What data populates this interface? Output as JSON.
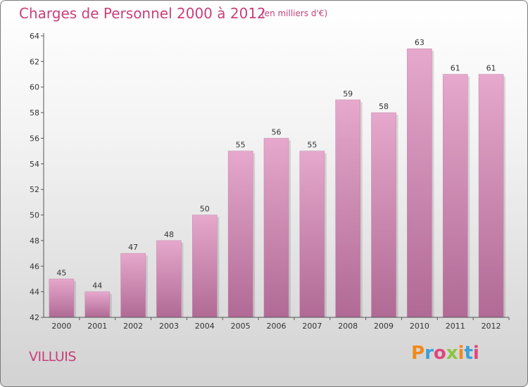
{
  "page": {
    "title": "Charges de Personnel 2000 à 2012",
    "subtitle": "(en milliers d'€)",
    "commune": "VILLUIS",
    "logo": {
      "text": "Proxiti",
      "colors": [
        "#f08a1c",
        "#3aa0d8",
        "#e0467a",
        "#8bc53f",
        "#f08a1c",
        "#3aa0d8",
        "#e0467a"
      ]
    }
  },
  "colors": {
    "bar_top": "#e6a8cc",
    "bar_bottom": "#b06a95",
    "title": "#c8407a"
  },
  "chart_data": {
    "type": "bar",
    "title": "Charges de Personnel 2000 à 2012",
    "subtitle": "(en milliers d'€)",
    "categories": [
      "2000",
      "2001",
      "2002",
      "2003",
      "2004",
      "2005",
      "2006",
      "2007",
      "2008",
      "2009",
      "2010",
      "2011",
      "2012"
    ],
    "values": [
      45,
      44,
      47,
      48,
      50,
      55,
      56,
      55,
      59,
      58,
      63,
      61,
      61
    ],
    "ylim": [
      42,
      64
    ],
    "yticks": [
      42,
      44,
      46,
      48,
      50,
      52,
      54,
      56,
      58,
      60,
      62,
      64
    ],
    "grid": false
  }
}
